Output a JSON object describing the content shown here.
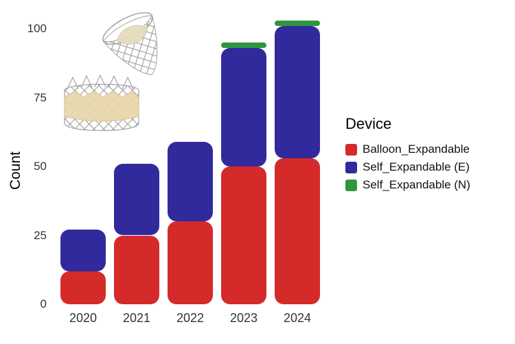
{
  "chart_data": {
    "type": "bar",
    "stacked": true,
    "title": "",
    "xlabel": "",
    "ylabel": "Count",
    "ylim": [
      0,
      105
    ],
    "yticks": [
      0,
      25,
      50,
      75,
      100
    ],
    "categories": [
      "2020",
      "2021",
      "2022",
      "2023",
      "2024"
    ],
    "series": [
      {
        "name": "Balloon_Expandable",
        "color": "#d52a2a",
        "values": [
          12,
          25,
          30,
          50,
          53
        ]
      },
      {
        "name": "Self_Expandable (E)",
        "color": "#312a9d",
        "values": [
          15,
          26,
          29,
          43,
          48
        ]
      },
      {
        "name": "Self_Expandable (N)",
        "color": "#2f9640",
        "values": [
          0,
          0,
          0,
          2,
          2
        ]
      }
    ],
    "legend_title": "Device",
    "legend_position": "right",
    "grid": false
  },
  "icons": {
    "illustration": "heart-valve-stent-devices"
  }
}
